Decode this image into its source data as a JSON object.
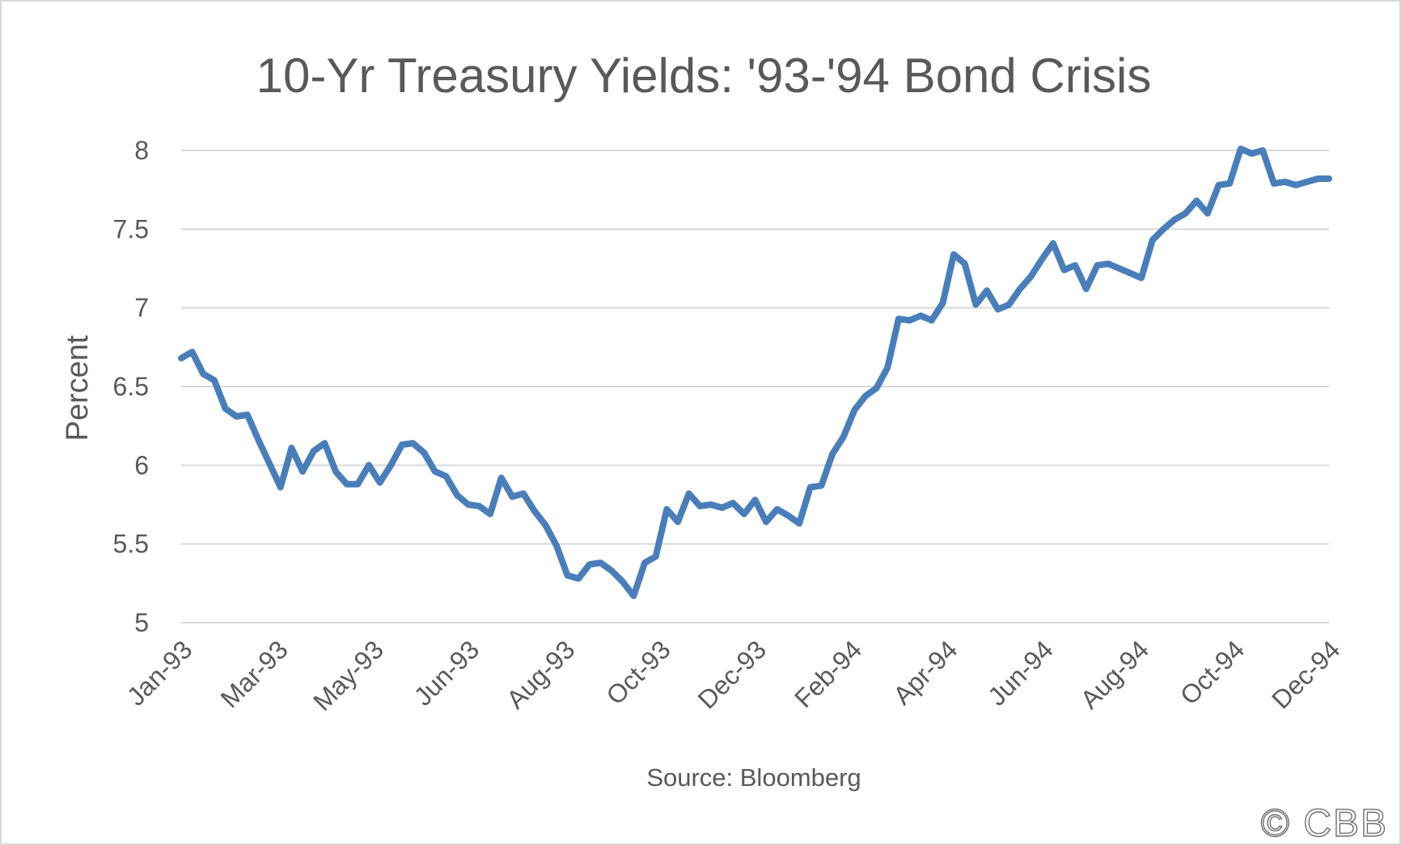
{
  "watermark": "© CBB",
  "chart_data": {
    "type": "line",
    "title": "10-Yr Treasury Yields: '93-'94 Bond Crisis",
    "ylabel": "Percent",
    "xlabel": "Source: Bloomberg",
    "ylim": [
      5,
      8
    ],
    "yticks": [
      "5",
      "5.5",
      "6",
      "6.5",
      "7",
      "7.5",
      "8"
    ],
    "xticks": [
      "Jan-93",
      "Mar-93",
      "May-93",
      "Jun-93",
      "Aug-93",
      "Oct-93",
      "Dec-93",
      "Feb-94",
      "Apr-94",
      "Jun-94",
      "Aug-94",
      "Oct-94",
      "Dec-94"
    ],
    "grid": true,
    "legend": "none",
    "line_color": "#4a7ebb",
    "series": [
      {
        "values": [
          6.68,
          6.72,
          6.58,
          6.54,
          6.36,
          6.31,
          6.32,
          6.16,
          6.01,
          5.86,
          6.11,
          5.96,
          6.09,
          6.14,
          5.96,
          5.88,
          5.88,
          6.0,
          5.89,
          6.0,
          6.13,
          6.14,
          6.08,
          5.96,
          5.93,
          5.81,
          5.75,
          5.74,
          5.69,
          5.92,
          5.8,
          5.82,
          5.71,
          5.62,
          5.49,
          5.3,
          5.28,
          5.37,
          5.38,
          5.33,
          5.26,
          5.17,
          5.38,
          5.42,
          5.72,
          5.64,
          5.82,
          5.74,
          5.75,
          5.73,
          5.76,
          5.69,
          5.78,
          5.64,
          5.72,
          5.68,
          5.63,
          5.86,
          5.87,
          6.07,
          6.18,
          6.35,
          6.44,
          6.49,
          6.62,
          6.93,
          6.92,
          6.95,
          6.92,
          7.03,
          7.34,
          7.28,
          7.02,
          7.11,
          6.99,
          7.02,
          7.12,
          7.2,
          7.31,
          7.41,
          7.24,
          7.27,
          7.12,
          7.27,
          7.28,
          7.25,
          7.22,
          7.19,
          7.43,
          7.5,
          7.56,
          7.6,
          7.68,
          7.6,
          7.78,
          7.79,
          8.01,
          7.98,
          8.0,
          7.79,
          7.8,
          7.78,
          7.8,
          7.82,
          7.82
        ]
      }
    ]
  }
}
